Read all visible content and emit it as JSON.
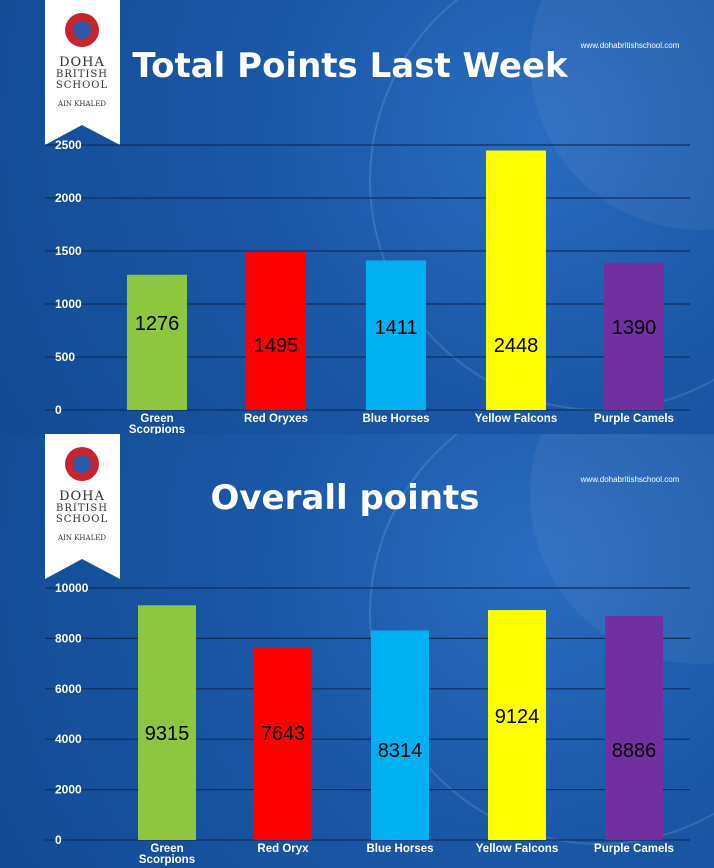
{
  "chart_data": [
    {
      "type": "bar",
      "title": "Total Points Last Week",
      "logo": [
        "DOHA",
        "BRITISH",
        "SCHOOL"
      ],
      "logo_subtitle": "AIN KHALED",
      "website": "www.dohabritishschool.com",
      "categories": [
        "Green Scorpions",
        "Red Oryxes",
        "Blue Horses",
        "Yellow Falcons",
        "Purple Camels"
      ],
      "values": [
        1276,
        1495,
        1411,
        2448,
        1390
      ],
      "colors": [
        "#8dc63f",
        "#ff0000",
        "#00b0f0",
        "#ffff00",
        "#7030a0"
      ],
      "ylim": [
        0,
        2500
      ],
      "yticks": [
        0,
        500,
        1000,
        1500,
        2000,
        2500
      ],
      "grid": true
    },
    {
      "type": "bar",
      "title": "Overall points",
      "logo": [
        "DOHA",
        "BRITISH",
        "SCHOOL"
      ],
      "logo_subtitle": "AIN KHALED",
      "website": "www.dohabritishschool.com",
      "categories": [
        "Green Scorpions",
        "Red Oryx",
        "Blue Horses",
        "Yellow Falcons",
        "Purple Camels"
      ],
      "values": [
        9315,
        7643,
        8314,
        9124,
        8886
      ],
      "colors": [
        "#8dc63f",
        "#ff0000",
        "#00b0f0",
        "#ffff00",
        "#7030a0"
      ],
      "ylim": [
        0,
        10000
      ],
      "yticks": [
        0,
        2000,
        4000,
        6000,
        8000,
        10000
      ],
      "grid": true
    }
  ]
}
